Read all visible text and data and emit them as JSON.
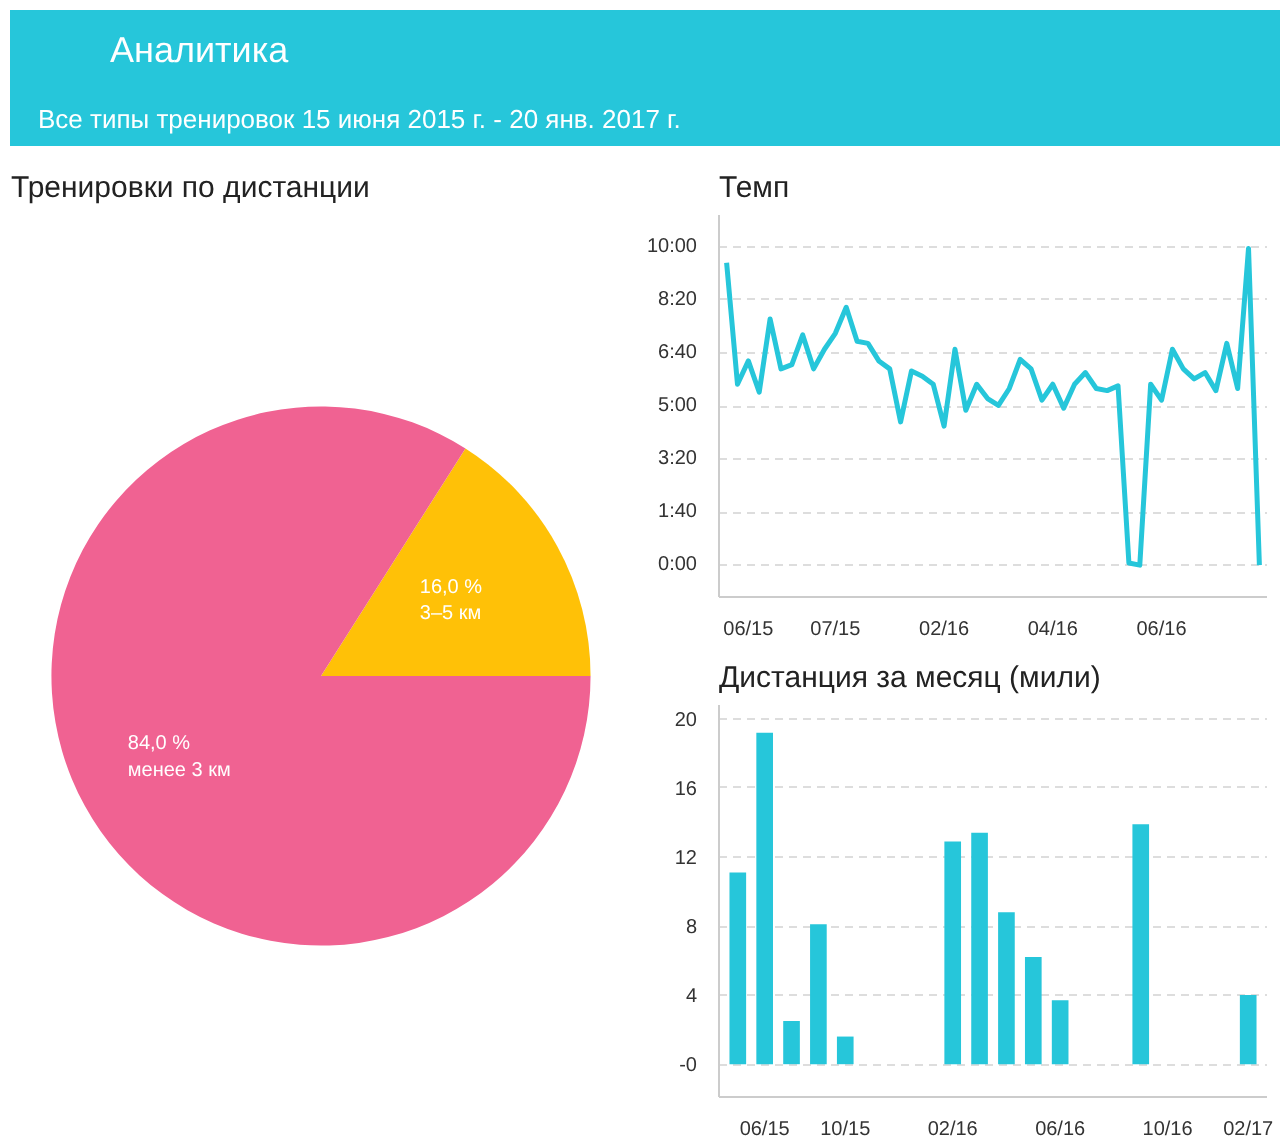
{
  "chart_data": [
    {
      "type": "pie",
      "title": "Тренировки по дистанции",
      "annotations": [
        "Аналитика",
        "Все типы тренировок 15 июня 2015 г. - 20 янв. 2017 г."
      ],
      "categories": [
        "3–5 км",
        "менее 3 км"
      ],
      "values": [
        16.0,
        84.0
      ],
      "colors": [
        "#ffc107",
        "#f06292"
      ],
      "value_labels": [
        "16,0 %",
        "84,0 %"
      ]
    },
    {
      "type": "line",
      "title": "Темп",
      "categories": [
        null,
        null,
        "06/15",
        null,
        null,
        null,
        null,
        null,
        null,
        null,
        "07/15",
        null,
        null,
        null,
        null,
        null,
        null,
        null,
        null,
        null,
        "02/16",
        null,
        null,
        null,
        null,
        null,
        null,
        null,
        null,
        null,
        "04/16",
        null,
        null,
        null,
        null,
        null,
        null,
        null,
        null,
        null,
        "06/16",
        null,
        null,
        null,
        null,
        null,
        null,
        null,
        null,
        null
      ],
      "series": [
        {
          "color": "#26c6da",
          "values": [
            570,
            341,
            385,
            326,
            464,
            370,
            378,
            434,
            370,
            407,
            437,
            486,
            422,
            418,
            385,
            370,
            270,
            366,
            356,
            341,
            262,
            407,
            292,
            341,
            314,
            301,
            333,
            388,
            370,
            311,
            341,
            296,
            341,
            363,
            333,
            329,
            338,
            4,
            0,
            341,
            311,
            407,
            370,
            351,
            363,
            329,
            418,
            333,
            597,
            0
          ]
        }
      ],
      "ylim": [
        -60,
        660
      ],
      "yticks": [
        {
          "value": 0,
          "label": "0:00"
        },
        {
          "value": 100,
          "label": "1:40"
        },
        {
          "value": 200,
          "label": "3:20"
        },
        {
          "value": 300,
          "label": "5:00"
        },
        {
          "value": 400,
          "label": "6:40"
        },
        {
          "value": 500,
          "label": "8:20"
        },
        {
          "value": 600,
          "label": "10:00"
        }
      ],
      "grid": "y",
      "marker": "none",
      "line_style": "solid"
    },
    {
      "type": "bar",
      "title": "Дистанция за месяц (мили)",
      "categories": [
        null,
        "06/15",
        null,
        null,
        "10/15",
        null,
        null,
        null,
        "02/16",
        null,
        null,
        null,
        "06/16",
        null,
        null,
        null,
        "10/16",
        null,
        null,
        "02/17"
      ],
      "series": [
        {
          "color": "#26c6da",
          "values": [
            11.1,
            19.2,
            2.5,
            8.1,
            1.6,
            null,
            null,
            null,
            12.9,
            13.4,
            8.8,
            6.2,
            3.7,
            null,
            null,
            13.9,
            null,
            null,
            null,
            4.0
          ]
        }
      ],
      "ylim": [
        -1.9,
        20.8
      ],
      "yticks": [
        {
          "value": 0,
          "label": "-0"
        },
        4,
        8,
        12,
        16,
        20
      ],
      "grid": "y"
    }
  ]
}
